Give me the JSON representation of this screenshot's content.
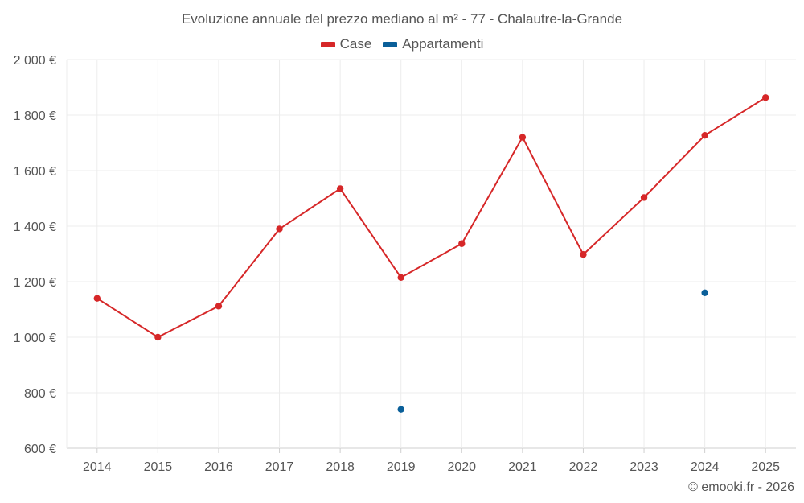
{
  "chart_data": {
    "type": "line",
    "title": "Evoluzione annuale del prezzo mediano al m² - 77 - Chalautre-la-Grande",
    "categories": [
      "2014",
      "2015",
      "2016",
      "2017",
      "2018",
      "2019",
      "2020",
      "2021",
      "2022",
      "2023",
      "2024",
      "2025"
    ],
    "series": [
      {
        "name": "Case",
        "color": "#d62728",
        "values": [
          1140,
          1000,
          1112,
          1390,
          1535,
          1215,
          1337,
          1720,
          1298,
          1503,
          1727,
          1863
        ]
      },
      {
        "name": "Appartamenti",
        "color": "#0a5f99",
        "values": [
          null,
          null,
          null,
          null,
          null,
          740,
          null,
          null,
          null,
          null,
          1160,
          null
        ]
      }
    ],
    "yticks": [
      "2 000 €",
      "1 800 €",
      "1 600 €",
      "1 400 €",
      "1 200 €",
      "1 000 €",
      "800 €",
      "600 €"
    ],
    "ytick_values": [
      2000,
      1800,
      1600,
      1400,
      1200,
      1000,
      800,
      600
    ],
    "ylim": [
      600,
      2000
    ],
    "grid": true,
    "legend_position": "top-center"
  },
  "credit": "© emooki.fr - 2026"
}
